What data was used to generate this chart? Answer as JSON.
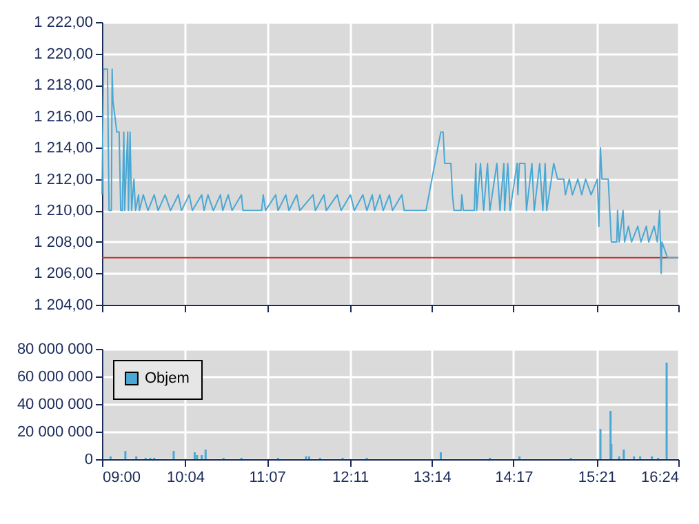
{
  "chart_data": [
    {
      "type": "line",
      "color": "#4aa8d4",
      "xlim": [
        9,
        16.4
      ],
      "xticks": [
        {
          "value": 9,
          "label": null
        },
        {
          "value": 10.0667,
          "label": null
        },
        {
          "value": 11.1167,
          "label": null
        },
        {
          "value": 12.1833,
          "label": null
        },
        {
          "value": 13.2333,
          "label": null
        },
        {
          "value": 14.2833,
          "label": null
        },
        {
          "value": 15.35,
          "label": null
        },
        {
          "value": 16.4,
          "label": null
        }
      ],
      "ylim": [
        1204,
        1222
      ],
      "yticks": [
        {
          "value": 1204,
          "label": "1 204,00"
        },
        {
          "value": 1206,
          "label": "1 206,00"
        },
        {
          "value": 1208,
          "label": "1 208,00"
        },
        {
          "value": 1210,
          "label": "1 210,00"
        },
        {
          "value": 1212,
          "label": "1 212,00"
        },
        {
          "value": 1214,
          "label": "1 214,00"
        },
        {
          "value": 1216,
          "label": "1 216,00"
        },
        {
          "value": 1218,
          "label": "1 218,00"
        },
        {
          "value": 1220,
          "label": "1 220,00"
        },
        {
          "value": 1222,
          "label": "1 222,00"
        }
      ],
      "grid": true,
      "tick_labels": "y",
      "ref_lines": [
        {
          "axis": "y",
          "value": 1207,
          "color": "#c0392b"
        }
      ],
      "x": [
        9.0,
        9.02,
        9.07,
        9.09,
        9.12,
        9.13,
        9.14,
        9.19,
        9.22,
        9.24,
        9.26,
        9.28,
        9.29,
        9.33,
        9.34,
        9.36,
        9.38,
        9.41,
        9.43,
        9.47,
        9.48,
        9.53,
        9.59,
        9.67,
        9.72,
        9.81,
        9.88,
        9.98,
        10.02,
        10.12,
        10.16,
        10.28,
        10.31,
        10.36,
        10.43,
        10.52,
        10.55,
        10.62,
        10.67,
        10.79,
        10.81,
        11.05,
        11.07,
        11.1,
        11.23,
        11.26,
        11.36,
        11.4,
        11.5,
        11.54,
        11.71,
        11.74,
        11.85,
        11.88,
        12.02,
        12.07,
        12.19,
        12.24,
        12.35,
        12.4,
        12.47,
        12.5,
        12.57,
        12.61,
        12.69,
        12.73,
        12.85,
        12.88,
        13.16,
        13.35,
        13.38,
        13.4,
        13.48,
        13.5,
        13.52,
        13.61,
        13.62,
        13.64,
        13.78,
        13.8,
        13.81,
        13.86,
        13.9,
        13.95,
        13.98,
        14.07,
        14.11,
        14.16,
        14.17,
        14.21,
        14.24,
        14.33,
        14.34,
        14.36,
        14.43,
        14.45,
        14.52,
        14.55,
        14.62,
        14.66,
        14.69,
        14.71,
        14.8,
        14.85,
        14.93,
        14.95,
        15.0,
        15.04,
        15.11,
        15.16,
        15.21,
        15.28,
        15.36,
        15.38,
        15.4,
        15.42,
        15.5,
        15.54,
        15.61,
        15.62,
        15.64,
        15.69,
        15.71,
        15.76,
        15.8,
        15.88,
        15.92,
        15.99,
        16.02,
        16.09,
        16.13,
        16.16,
        16.18,
        16.19,
        16.26,
        16.4
      ],
      "values": [
        1211,
        1219,
        1219,
        1210,
        1210,
        1219,
        1217,
        1215,
        1215,
        1210,
        1210,
        1215,
        1210,
        1215,
        1210,
        1215,
        1210,
        1212,
        1210,
        1211,
        1210,
        1211,
        1210,
        1211,
        1210,
        1211,
        1210,
        1211,
        1210,
        1211,
        1210,
        1211,
        1210,
        1211,
        1210,
        1211,
        1210,
        1211,
        1210,
        1211,
        1210,
        1210,
        1211,
        1210,
        1211,
        1210,
        1211,
        1210,
        1211,
        1210,
        1211,
        1210,
        1211,
        1210,
        1211,
        1210,
        1211,
        1210,
        1211,
        1210,
        1211,
        1210,
        1211,
        1210,
        1211,
        1210,
        1211,
        1210,
        1210,
        1215,
        1215,
        1213,
        1213,
        1211,
        1210,
        1210,
        1211,
        1210,
        1210,
        1213,
        1210,
        1213,
        1210,
        1213,
        1210,
        1213,
        1210,
        1213,
        1210,
        1213,
        1210,
        1213,
        1211,
        1213,
        1213,
        1210,
        1213,
        1210,
        1213,
        1210,
        1213,
        1210,
        1213,
        1212,
        1212,
        1211,
        1212,
        1211,
        1212,
        1211,
        1212,
        1211,
        1212,
        1209,
        1214,
        1212,
        1212,
        1208,
        1208,
        1210,
        1208,
        1210,
        1208,
        1209,
        1208,
        1209,
        1208,
        1209,
        1208,
        1209,
        1208,
        1210,
        1206,
        1208,
        1207,
        1207
      ]
    },
    {
      "type": "bar",
      "xlim": [
        9,
        16.4
      ],
      "xticks": [
        {
          "value": 9,
          "label": "09:00"
        },
        {
          "value": 10.0667,
          "label": "10:04"
        },
        {
          "value": 11.1167,
          "label": "11:07"
        },
        {
          "value": 12.1833,
          "label": "12:11"
        },
        {
          "value": 13.2333,
          "label": "13:14"
        },
        {
          "value": 14.2833,
          "label": "14:17"
        },
        {
          "value": 15.35,
          "label": "15:21"
        },
        {
          "value": 16.4,
          "label": "16:24"
        }
      ],
      "ylim": [
        0,
        80000000
      ],
      "yticks": [
        {
          "value": 0,
          "label": "0"
        },
        {
          "value": 20000000,
          "label": "20 000 000"
        },
        {
          "value": 40000000,
          "label": "40 000 000"
        },
        {
          "value": 60000000,
          "label": "60 000 000"
        },
        {
          "value": 80000000,
          "label": "80 000 000"
        }
      ],
      "grid": true,
      "legend": "top left",
      "series": [
        {
          "name": "Objem",
          "color": "#4aa8d4",
          "x": [
            9.11,
            9.3,
            9.44,
            9.56,
            9.62,
            9.67,
            9.92,
            10.19,
            10.22,
            10.28,
            10.33,
            10.56,
            10.79,
            11.26,
            11.62,
            11.66,
            11.8,
            12.09,
            12.4,
            13.35,
            13.98,
            14.36,
            15.02,
            15.4,
            15.53,
            15.54,
            15.64,
            15.7,
            15.83,
            15.91,
            16.06,
            16.14,
            16.25
          ],
          "values": [
            2000000,
            6000000,
            2000000,
            1000000,
            1000000,
            1000000,
            6000000,
            5000000,
            3000000,
            3000000,
            7000000,
            1000000,
            1000000,
            1000000,
            2000000,
            2000000,
            1000000,
            1000000,
            1000000,
            5000000,
            1000000,
            2000000,
            1000000,
            22000000,
            35000000,
            11000000,
            2000000,
            7000000,
            2000000,
            2000000,
            2000000,
            1000000,
            70000000
          ]
        }
      ]
    }
  ]
}
